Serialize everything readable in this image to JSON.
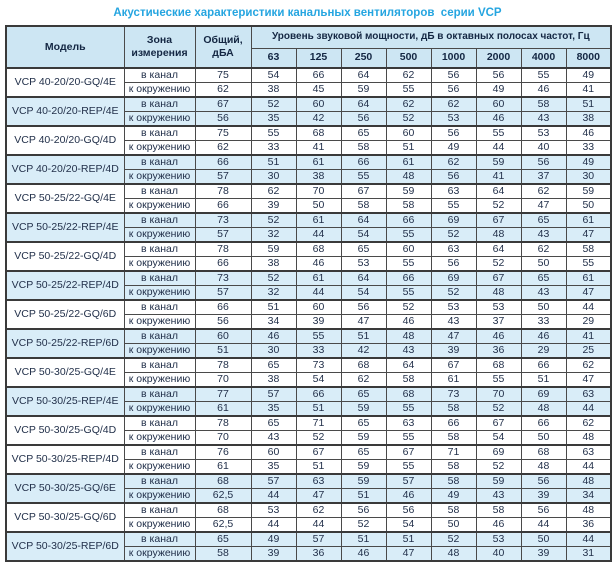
{
  "title": "Акустические характеристики канальных вентиляторов  серии VCP",
  "colors": {
    "title_text": "#25a5e0",
    "header_bg": "#cde6f3",
    "row_highlight_bg": "#d9edf8",
    "row_bg": "#ffffff",
    "text": "#22304a",
    "border": "#4a4a4a"
  },
  "table": {
    "headers": {
      "model": "Модель",
      "zone": "Зона измерения",
      "total": "Общий, дБА",
      "spl": "Уровень звуковой мощности, дБ в октавных полосах частот, Гц",
      "frequencies": [
        "63",
        "125",
        "250",
        "500",
        "1000",
        "2000",
        "4000",
        "8000"
      ]
    },
    "zone_labels": {
      "in_duct": "в канал",
      "to_surroundings": "к окружению"
    },
    "rows": [
      {
        "model": "VCP 40-20/20-GQ/4E",
        "highlight": false,
        "in_duct": {
          "total": "75",
          "bands": [
            54,
            66,
            64,
            62,
            56,
            56,
            55,
            49
          ]
        },
        "to_surroundings": {
          "total": "62",
          "bands": [
            38,
            45,
            59,
            55,
            56,
            49,
            46,
            41
          ]
        }
      },
      {
        "model": "VCP 40-20/20-REP/4E",
        "highlight": true,
        "in_duct": {
          "total": "67",
          "bands": [
            52,
            60,
            64,
            62,
            62,
            60,
            58,
            51
          ]
        },
        "to_surroundings": {
          "total": "56",
          "bands": [
            35,
            42,
            56,
            52,
            53,
            46,
            43,
            38
          ]
        }
      },
      {
        "model": "VCP 40-20/20-GQ/4D",
        "highlight": false,
        "in_duct": {
          "total": "75",
          "bands": [
            55,
            68,
            65,
            60,
            56,
            55,
            53,
            46
          ]
        },
        "to_surroundings": {
          "total": "62",
          "bands": [
            33,
            41,
            58,
            51,
            49,
            44,
            40,
            33
          ]
        }
      },
      {
        "model": "VCP 40-20/20-REP/4D",
        "highlight": true,
        "in_duct": {
          "total": "66",
          "bands": [
            51,
            61,
            66,
            61,
            62,
            59,
            56,
            49
          ]
        },
        "to_surroundings": {
          "total": "57",
          "bands": [
            30,
            38,
            55,
            48,
            56,
            41,
            37,
            30
          ]
        }
      },
      {
        "model": "VCP 50-25/22-GQ/4E",
        "highlight": false,
        "in_duct": {
          "total": "78",
          "bands": [
            62,
            70,
            67,
            59,
            63,
            64,
            62,
            59
          ]
        },
        "to_surroundings": {
          "total": "66",
          "bands": [
            39,
            50,
            58,
            58,
            55,
            52,
            47,
            50
          ]
        }
      },
      {
        "model": "VCP 50-25/22-REP/4E",
        "highlight": true,
        "in_duct": {
          "total": "73",
          "bands": [
            52,
            61,
            64,
            66,
            69,
            67,
            65,
            61
          ]
        },
        "to_surroundings": {
          "total": "57",
          "bands": [
            32,
            44,
            54,
            55,
            52,
            48,
            43,
            47
          ]
        }
      },
      {
        "model": "VCP 50-25/22-GQ/4D",
        "highlight": false,
        "in_duct": {
          "total": "78",
          "bands": [
            59,
            68,
            65,
            60,
            63,
            64,
            62,
            58
          ]
        },
        "to_surroundings": {
          "total": "66",
          "bands": [
            38,
            46,
            53,
            55,
            56,
            52,
            50,
            55
          ]
        }
      },
      {
        "model": "VCP 50-25/22-REP/4D",
        "highlight": true,
        "in_duct": {
          "total": "73",
          "bands": [
            52,
            61,
            64,
            66,
            69,
            67,
            65,
            61
          ]
        },
        "to_surroundings": {
          "total": "57",
          "bands": [
            32,
            44,
            54,
            55,
            52,
            48,
            43,
            47
          ]
        }
      },
      {
        "model": "VCP 50-25/22-GQ/6D",
        "highlight": false,
        "in_duct": {
          "total": "66",
          "bands": [
            51,
            60,
            56,
            52,
            53,
            53,
            50,
            44
          ]
        },
        "to_surroundings": {
          "total": "56",
          "bands": [
            34,
            39,
            47,
            46,
            43,
            37,
            33,
            29
          ]
        }
      },
      {
        "model": "VCP 50-25/22-REP/6D",
        "highlight": true,
        "in_duct": {
          "total": "60",
          "bands": [
            46,
            55,
            51,
            48,
            47,
            46,
            46,
            41
          ]
        },
        "to_surroundings": {
          "total": "51",
          "bands": [
            30,
            33,
            42,
            43,
            39,
            36,
            29,
            25
          ]
        }
      },
      {
        "model": "VCP 50-30/25-GQ/4E",
        "highlight": false,
        "in_duct": {
          "total": "78",
          "bands": [
            65,
            73,
            68,
            64,
            67,
            68,
            66,
            62
          ]
        },
        "to_surroundings": {
          "total": "70",
          "bands": [
            38,
            54,
            62,
            58,
            61,
            55,
            51,
            47
          ]
        }
      },
      {
        "model": "VCP 50-30/25-REP/4E",
        "highlight": true,
        "in_duct": {
          "total": "77",
          "bands": [
            57,
            66,
            65,
            68,
            73,
            70,
            69,
            63
          ]
        },
        "to_surroundings": {
          "total": "61",
          "bands": [
            35,
            51,
            59,
            55,
            58,
            52,
            48,
            44
          ]
        }
      },
      {
        "model": "VCP 50-30/25-GQ/4D",
        "highlight": false,
        "in_duct": {
          "total": "78",
          "bands": [
            65,
            71,
            65,
            63,
            66,
            67,
            66,
            62
          ]
        },
        "to_surroundings": {
          "total": "70",
          "bands": [
            43,
            52,
            59,
            55,
            58,
            54,
            50,
            48
          ]
        }
      },
      {
        "model": "VCP 50-30/25-REP/4D",
        "highlight": false,
        "in_duct": {
          "total": "76",
          "bands": [
            60,
            67,
            65,
            67,
            71,
            69,
            68,
            63
          ]
        },
        "to_surroundings": {
          "total": "61",
          "bands": [
            35,
            51,
            59,
            55,
            58,
            52,
            48,
            44
          ]
        }
      },
      {
        "model": "VCP 50-30/25-GQ/6E",
        "highlight": true,
        "in_duct": {
          "total": "68",
          "bands": [
            57,
            63,
            59,
            57,
            58,
            59,
            56,
            48
          ]
        },
        "to_surroundings": {
          "total": "62,5",
          "bands": [
            44,
            47,
            51,
            46,
            49,
            43,
            39,
            34
          ]
        }
      },
      {
        "model": "VCP 50-30/25-GQ/6D",
        "highlight": false,
        "in_duct": {
          "total": "68",
          "bands": [
            53,
            62,
            56,
            56,
            58,
            58,
            56,
            48
          ]
        },
        "to_surroundings": {
          "total": "62,5",
          "bands": [
            44,
            44,
            52,
            54,
            50,
            46,
            44,
            36
          ]
        }
      },
      {
        "model": "VCP 50-30/25-REP/6D",
        "highlight": true,
        "in_duct": {
          "total": "65",
          "bands": [
            49,
            57,
            51,
            51,
            52,
            53,
            50,
            44
          ]
        },
        "to_surroundings": {
          "total": "58",
          "bands": [
            39,
            36,
            46,
            47,
            48,
            40,
            39,
            31
          ]
        }
      }
    ]
  }
}
